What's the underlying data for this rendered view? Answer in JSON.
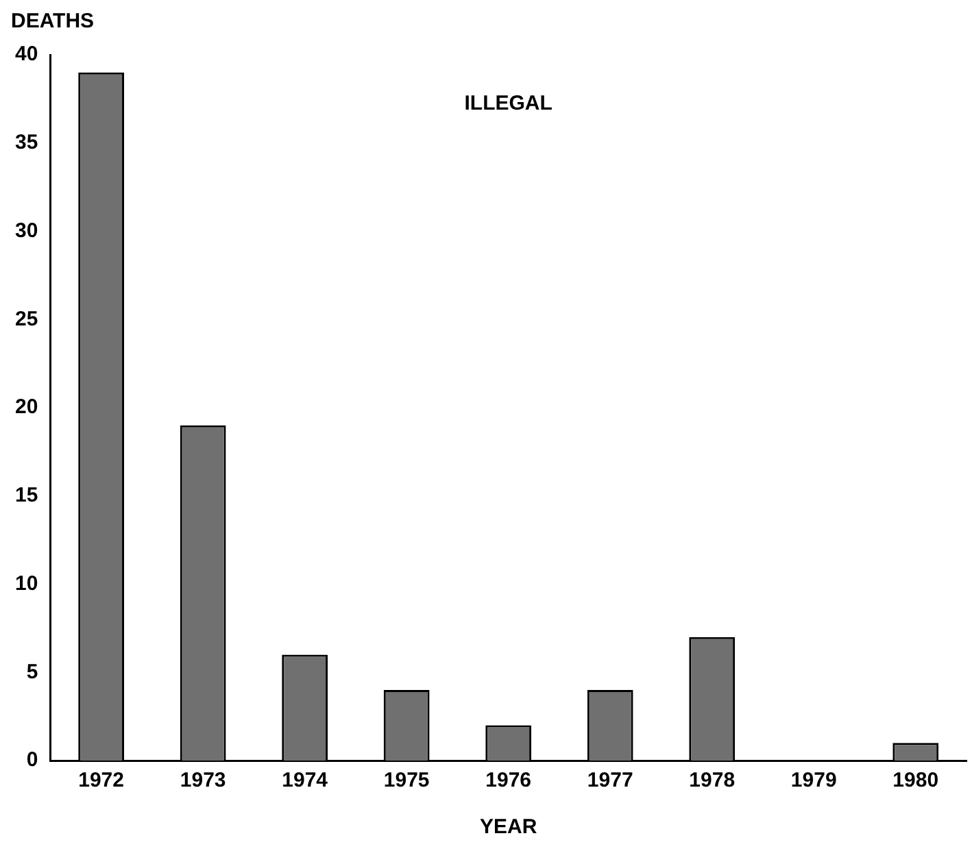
{
  "chart_data": {
    "type": "bar",
    "title": "ILLEGAL",
    "xlabel": "YEAR",
    "ylabel": "DEATHS",
    "categories": [
      "1972",
      "1973",
      "1974",
      "1975",
      "1976",
      "1977",
      "1978",
      "1979",
      "1980"
    ],
    "values": [
      39,
      19,
      6,
      4,
      2,
      4,
      7,
      0,
      1
    ],
    "color": "#707070",
    "ylim": [
      0,
      40
    ],
    "yticks": [
      0,
      5,
      10,
      15,
      20,
      25,
      30,
      35,
      40
    ],
    "grid": false,
    "legend": false
  }
}
